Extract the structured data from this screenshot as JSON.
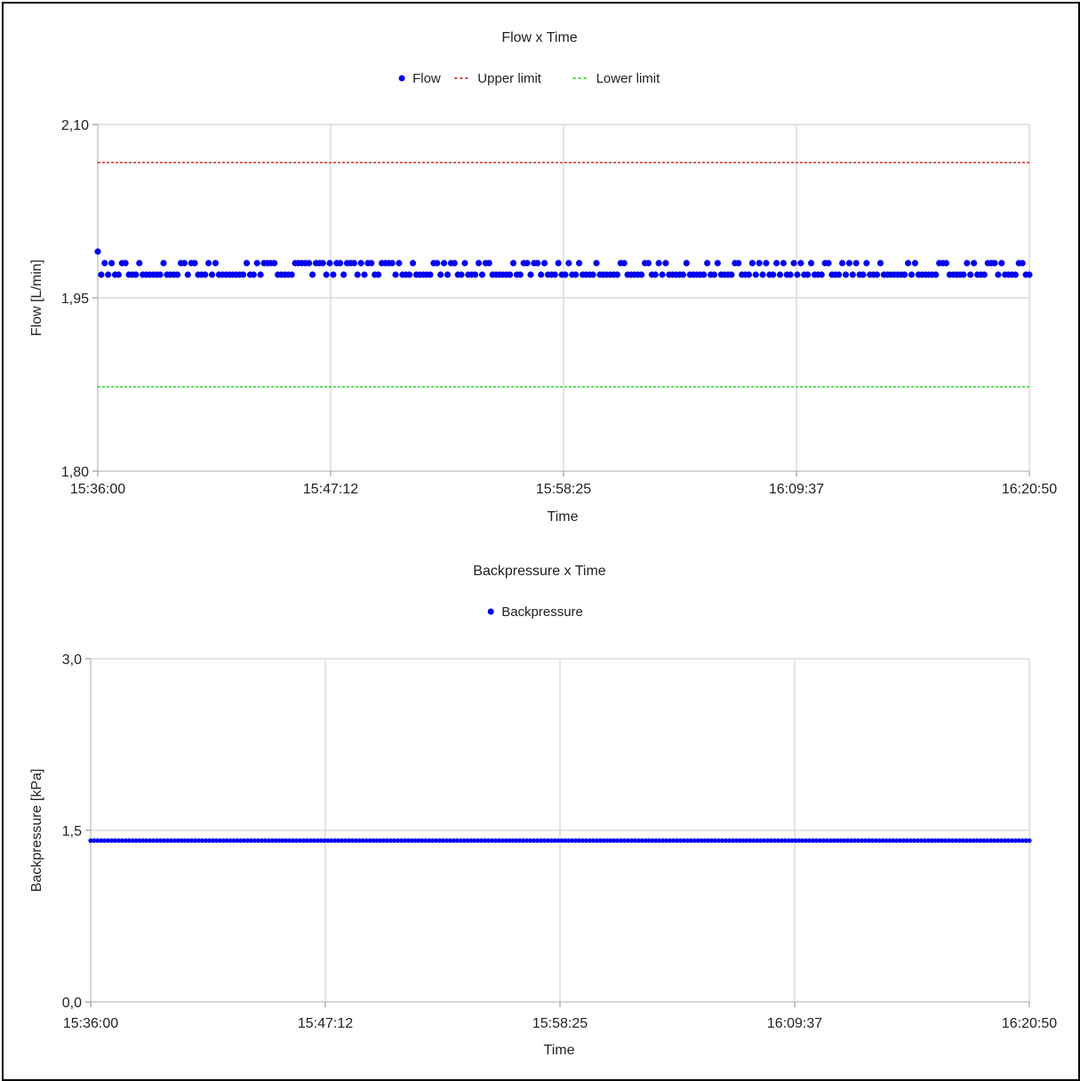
{
  "chart_data": [
    {
      "type": "scatter",
      "title": "Flow x Time",
      "xlabel": "Time",
      "ylabel": "Flow [L/min]",
      "x_ticks": [
        "15:36:00",
        "15:47:12",
        "15:58:25",
        "16:09:37",
        "16:20:50"
      ],
      "xlim": [
        "15:36:00",
        "16:20:50"
      ],
      "y_ticks": [
        "2,10",
        "1,95",
        "1,80"
      ],
      "ylim": [
        1.8,
        2.1
      ],
      "grid": true,
      "legend_position": "top-center",
      "series": [
        {
          "name": "Flow",
          "kind": "points",
          "color": "#0000ee",
          "note_values": "dense samples alternating between two levels",
          "levels": [
            1.98,
            1.97
          ],
          "first_value": 1.99,
          "sample_count": 270
        },
        {
          "name": "Upper limit",
          "kind": "dashed-line",
          "color": "#cc0000",
          "value": 2.067
        },
        {
          "name": "Lower limit",
          "kind": "dashed-line",
          "color": "#00cc00",
          "value": 1.873
        }
      ]
    },
    {
      "type": "scatter",
      "title": "Backpressure x Time",
      "xlabel": "Time",
      "ylabel": "Backpressure [kPa]",
      "x_ticks": [
        "15:36:00",
        "15:47:12",
        "15:58:25",
        "16:09:37",
        "16:20:50"
      ],
      "xlim": [
        "15:36:00",
        "16:20:50"
      ],
      "y_ticks": [
        "3,0",
        "1,5",
        "0,0"
      ],
      "ylim": [
        0.0,
        3.0
      ],
      "grid": true,
      "legend_position": "top-center",
      "series": [
        {
          "name": "Backpressure",
          "kind": "points",
          "color": "#0000ee",
          "value": 1.41,
          "sample_count": 270
        }
      ]
    }
  ]
}
